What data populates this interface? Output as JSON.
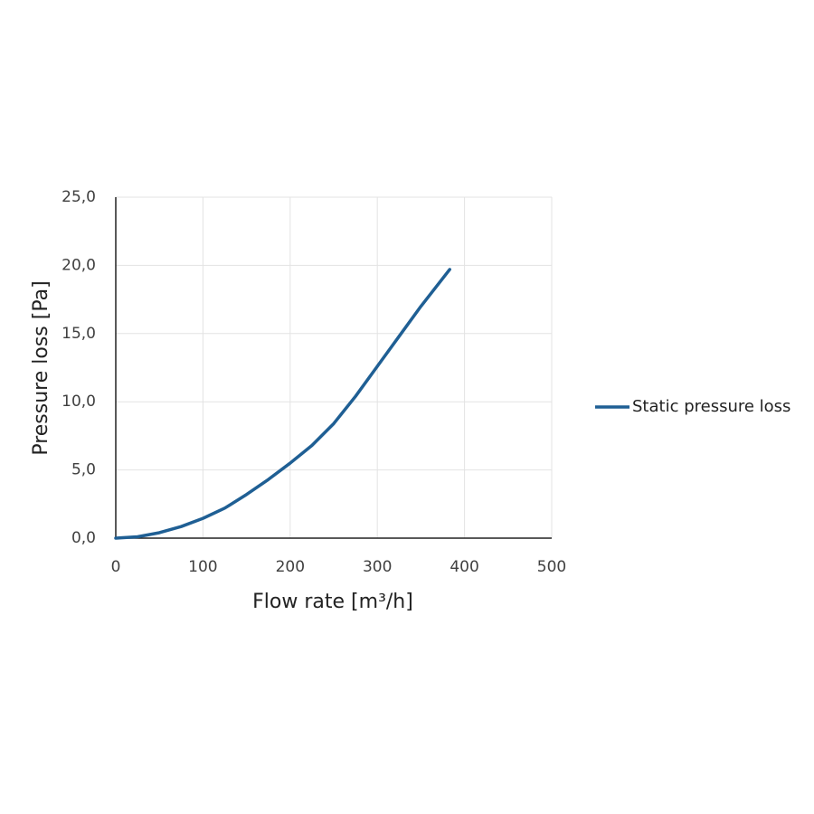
{
  "chart_data": {
    "type": "line",
    "xlabel": "Flow rate [m³/h]",
    "ylabel": "Pressure loss [Pa]",
    "x": [
      0,
      25,
      50,
      75,
      100,
      125,
      150,
      175,
      200,
      225,
      250,
      275,
      300,
      325,
      350,
      383
    ],
    "series": [
      {
        "name": "Static pressure loss",
        "color": "#1f5f94",
        "values": [
          0,
          0.1,
          0.4,
          0.85,
          1.45,
          2.2,
          3.2,
          4.3,
          5.5,
          6.8,
          8.4,
          10.4,
          12.6,
          14.8,
          17.0,
          19.7
        ]
      }
    ],
    "xlim": [
      0,
      500
    ],
    "xticks": [
      0,
      100,
      200,
      300,
      400,
      500
    ],
    "ylim": [
      0,
      25
    ],
    "yticks": [
      {
        "value": 0,
        "label": "0,0"
      },
      {
        "value": 5,
        "label": "5,0"
      },
      {
        "value": 10,
        "label": "10,0"
      },
      {
        "value": 15,
        "label": "15,0"
      },
      {
        "value": 20,
        "label": "20,0"
      },
      {
        "value": 25,
        "label": "25,0"
      }
    ],
    "grid": true,
    "legend": "right"
  }
}
